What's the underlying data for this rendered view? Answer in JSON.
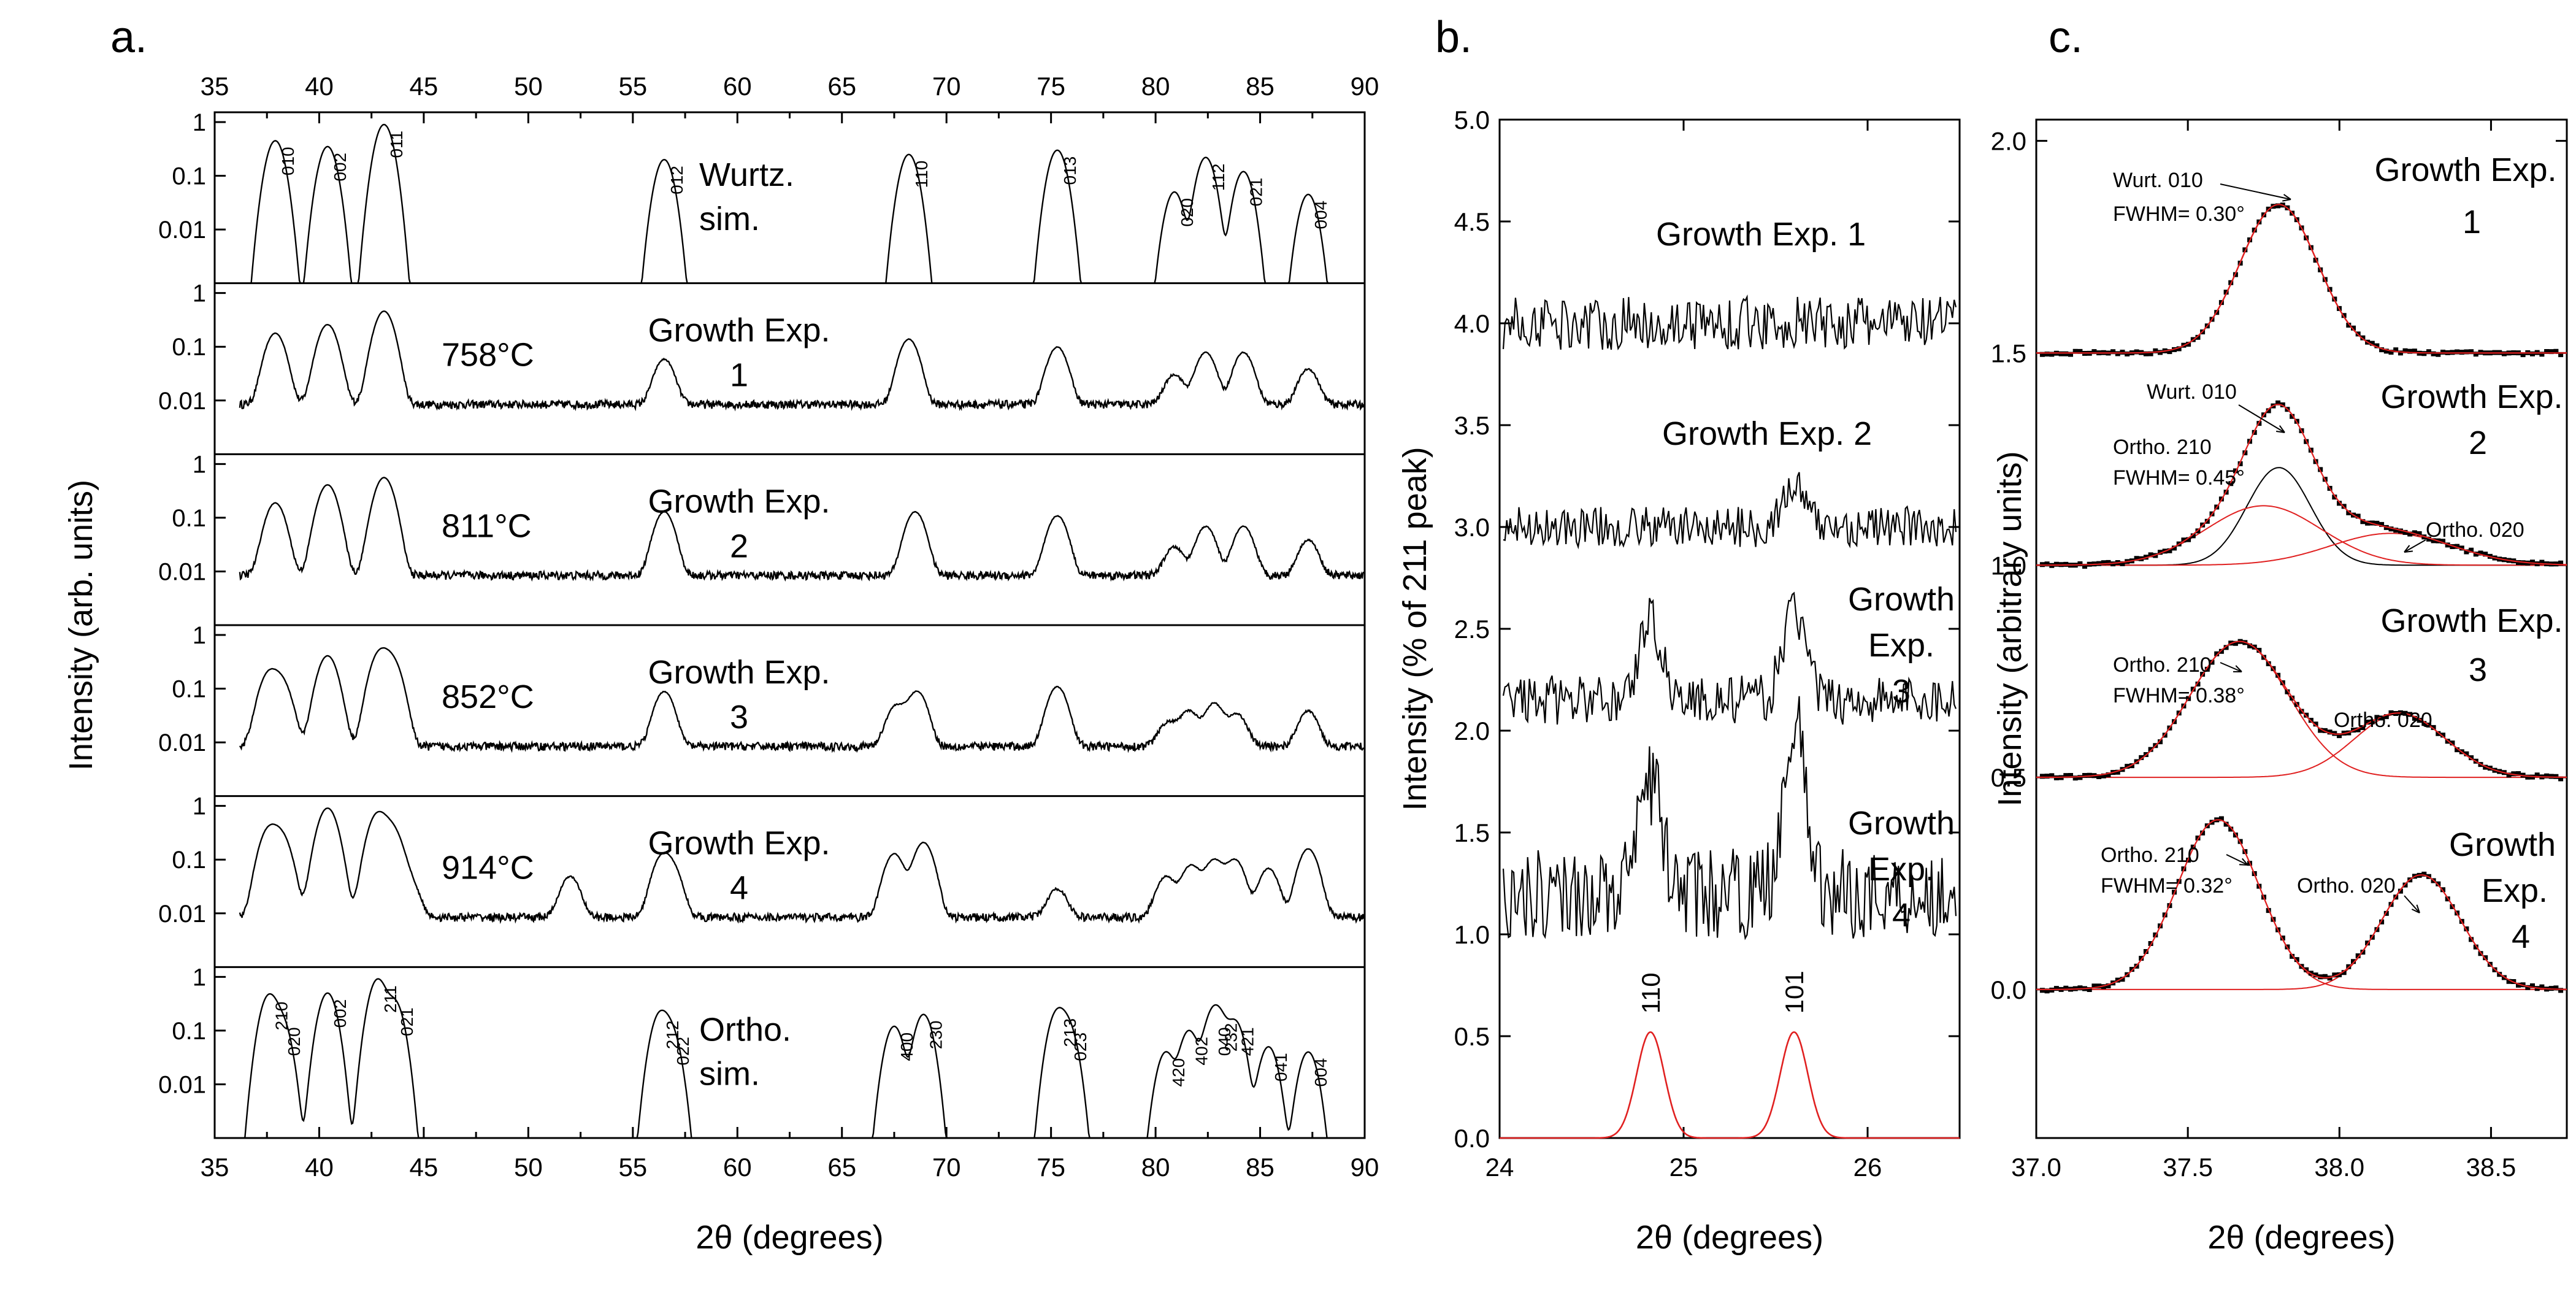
{
  "panels": {
    "a": {
      "letter": "a."
    },
    "b": {
      "letter": "b."
    },
    "c": {
      "letter": "c."
    }
  },
  "chart_data": [
    {
      "type": "line",
      "panel": "a",
      "xlabel": "2θ (degrees)",
      "ylabel": "Intensity (arb. units)",
      "xlim": [
        35,
        90
      ],
      "xticks": [
        "35",
        "40",
        "45",
        "50",
        "55",
        "60",
        "65",
        "70",
        "75",
        "80",
        "85",
        "90"
      ],
      "ylog": true,
      "ylim": [
        0.001,
        1
      ],
      "yticks": [
        "0.01",
        "0.1",
        "1"
      ],
      "subpanels": [
        {
          "label": "Wurtz. sim.",
          "label_lines": [
            "Wurtz.",
            "sim."
          ],
          "temp": "",
          "kind": "sim",
          "peaks": [
            {
              "x": 37.9,
              "h": 0.45,
              "hkl": "010"
            },
            {
              "x": 40.4,
              "h": 0.35,
              "hkl": "002"
            },
            {
              "x": 43.1,
              "h": 0.9,
              "hkl": "011"
            },
            {
              "x": 56.5,
              "h": 0.2,
              "hkl": "012"
            },
            {
              "x": 68.2,
              "h": 0.25,
              "hkl": "110"
            },
            {
              "x": 75.3,
              "h": 0.3,
              "hkl": "013"
            },
            {
              "x": 80.9,
              "h": 0.05,
              "hkl": "020"
            },
            {
              "x": 82.4,
              "h": 0.22,
              "hkl": "112"
            },
            {
              "x": 84.2,
              "h": 0.12,
              "hkl": "021"
            },
            {
              "x": 87.3,
              "h": 0.045,
              "hkl": "004"
            }
          ]
        },
        {
          "label": "Growth Exp. 1",
          "label_lines": [
            "Growth Exp.",
            "1"
          ],
          "temp": "758°C",
          "kind": "exp",
          "peaks": [
            {
              "x": 37.9,
              "h": 0.17
            },
            {
              "x": 40.4,
              "h": 0.25
            },
            {
              "x": 43.1,
              "h": 0.45
            },
            {
              "x": 56.5,
              "h": 0.05
            },
            {
              "x": 68.2,
              "h": 0.13
            },
            {
              "x": 75.3,
              "h": 0.09
            },
            {
              "x": 80.9,
              "h": 0.022
            },
            {
              "x": 82.4,
              "h": 0.07
            },
            {
              "x": 84.2,
              "h": 0.07
            },
            {
              "x": 87.3,
              "h": 0.03
            }
          ]
        },
        {
          "label": "Growth Exp. 2",
          "label_lines": [
            "Growth Exp.",
            "2"
          ],
          "temp": "811°C",
          "kind": "exp",
          "peaks": [
            {
              "x": 37.9,
              "h": 0.18
            },
            {
              "x": 40.4,
              "h": 0.4
            },
            {
              "x": 43.1,
              "h": 0.55
            },
            {
              "x": 56.5,
              "h": 0.12
            },
            {
              "x": 68.5,
              "h": 0.12
            },
            {
              "x": 75.3,
              "h": 0.1
            },
            {
              "x": 80.9,
              "h": 0.02
            },
            {
              "x": 82.4,
              "h": 0.06
            },
            {
              "x": 84.2,
              "h": 0.06
            },
            {
              "x": 87.3,
              "h": 0.03
            }
          ]
        },
        {
          "label": "Growth Exp. 3",
          "label_lines": [
            "Growth Exp.",
            "3"
          ],
          "temp": "852°C",
          "kind": "exp",
          "peaks": [
            {
              "x": 37.6,
              "h": 0.18
            },
            {
              "x": 38.2,
              "h": 0.12
            },
            {
              "x": 40.4,
              "h": 0.4
            },
            {
              "x": 42.9,
              "h": 0.45
            },
            {
              "x": 43.5,
              "h": 0.3
            },
            {
              "x": 56.5,
              "h": 0.08
            },
            {
              "x": 67.6,
              "h": 0.04
            },
            {
              "x": 68.6,
              "h": 0.08
            },
            {
              "x": 75.3,
              "h": 0.1
            },
            {
              "x": 80.6,
              "h": 0.015
            },
            {
              "x": 81.6,
              "h": 0.03
            },
            {
              "x": 82.8,
              "h": 0.045
            },
            {
              "x": 83.9,
              "h": 0.025
            },
            {
              "x": 87.3,
              "h": 0.03
            }
          ]
        },
        {
          "label": "Growth Exp. 4",
          "label_lines": [
            "Growth Exp.",
            "4"
          ],
          "temp": "914°C",
          "kind": "exp",
          "peaks": [
            {
              "x": 37.6,
              "h": 0.35
            },
            {
              "x": 38.2,
              "h": 0.25
            },
            {
              "x": 40.4,
              "h": 0.9
            },
            {
              "x": 42.8,
              "h": 0.7
            },
            {
              "x": 43.5,
              "h": 0.35
            },
            {
              "x": 44.3,
              "h": 0.03
            },
            {
              "x": 52.0,
              "h": 0.04
            },
            {
              "x": 56.4,
              "h": 0.1
            },
            {
              "x": 56.9,
              "h": 0.05
            },
            {
              "x": 67.5,
              "h": 0.12
            },
            {
              "x": 68.9,
              "h": 0.2
            },
            {
              "x": 75.3,
              "h": 0.02
            },
            {
              "x": 80.5,
              "h": 0.04
            },
            {
              "x": 81.7,
              "h": 0.07
            },
            {
              "x": 82.8,
              "h": 0.09
            },
            {
              "x": 83.8,
              "h": 0.09
            },
            {
              "x": 85.4,
              "h": 0.06
            },
            {
              "x": 87.3,
              "h": 0.15
            }
          ]
        },
        {
          "label": "Ortho. sim.",
          "label_lines": [
            "Ortho.",
            "sim."
          ],
          "temp": "",
          "kind": "sim",
          "peaks": [
            {
              "x": 37.6,
              "h": 0.45,
              "hkl": "210"
            },
            {
              "x": 38.2,
              "h": 0.15,
              "hkl": "020"
            },
            {
              "x": 40.4,
              "h": 0.5,
              "hkl": "002"
            },
            {
              "x": 42.8,
              "h": 0.9,
              "hkl": "211"
            },
            {
              "x": 43.6,
              "h": 0.35,
              "hkl": "021"
            },
            {
              "x": 56.3,
              "h": 0.2,
              "hkl": "212"
            },
            {
              "x": 56.8,
              "h": 0.1,
              "hkl": "022"
            },
            {
              "x": 67.5,
              "h": 0.12,
              "hkl": "400"
            },
            {
              "x": 68.9,
              "h": 0.2,
              "hkl": "230"
            },
            {
              "x": 75.3,
              "h": 0.22,
              "hkl": "213"
            },
            {
              "x": 75.8,
              "h": 0.12,
              "hkl": "023"
            },
            {
              "x": 80.5,
              "h": 0.04,
              "hkl": "420"
            },
            {
              "x": 81.6,
              "h": 0.1,
              "hkl": "402"
            },
            {
              "x": 82.7,
              "h": 0.15,
              "hkl": "040"
            },
            {
              "x": 83.0,
              "h": 0.18,
              "hkl": "232"
            },
            {
              "x": 83.8,
              "h": 0.15,
              "hkl": "421"
            },
            {
              "x": 85.4,
              "h": 0.05,
              "hkl": "041"
            },
            {
              "x": 87.3,
              "h": 0.04,
              "hkl": "004"
            }
          ]
        }
      ]
    },
    {
      "type": "line",
      "panel": "b",
      "xlabel": "2θ (degrees)",
      "ylabel": "Intensity (% of 211 peak)",
      "xlim": [
        24,
        26.5
      ],
      "xticks": [
        "24",
        "25",
        "26"
      ],
      "ylim": [
        0,
        5
      ],
      "yticks": [
        "0.0",
        "0.5",
        "1.0",
        "1.5",
        "2.0",
        "2.5",
        "3.0",
        "3.5",
        "4.0",
        "4.5",
        "5.0"
      ],
      "series": [
        {
          "name": "Growth Exp. 1",
          "label_lines": [
            "Growth Exp. 1"
          ],
          "baseline": 4.0,
          "noise": 0.13,
          "peaks": []
        },
        {
          "name": "Growth Exp. 2",
          "label_lines": [
            "Growth Exp. 2"
          ],
          "baseline": 3.0,
          "noise": 0.1,
          "peaks": [
            {
              "x": 25.6,
              "h": 0.2
            }
          ]
        },
        {
          "name": "Growth Exp. 3",
          "label_lines": [
            "Growth",
            "Exp.",
            "3"
          ],
          "baseline": 2.15,
          "noise": 0.12,
          "peaks": [
            {
              "x": 24.82,
              "h": 0.4
            },
            {
              "x": 25.6,
              "h": 0.45
            }
          ]
        },
        {
          "name": "Growth Exp. 4",
          "label_lines": [
            "Growth",
            "Exp.",
            "4"
          ],
          "baseline": 1.2,
          "noise": 0.22,
          "peaks": [
            {
              "x": 24.82,
              "h": 0.55
            },
            {
              "x": 25.6,
              "h": 0.85
            }
          ]
        }
      ],
      "reference": [
        {
          "x": 24.82,
          "h": 0.52,
          "hkl": "110"
        },
        {
          "x": 25.6,
          "h": 0.52,
          "hkl": "101"
        }
      ],
      "reference_color": "#e02020"
    },
    {
      "type": "line",
      "panel": "c",
      "xlabel": "2θ (degrees)",
      "ylabel": "Intensity (arbitrary units)",
      "xlim": [
        37.0,
        38.75
      ],
      "xticks": [
        "37.0",
        "37.5",
        "38.0",
        "38.5"
      ],
      "ylim": [
        -0.35,
        2.05
      ],
      "yticks": [
        "0.0",
        "0.5",
        "1.0",
        "1.5",
        "2.0"
      ],
      "fit_color": "#e02020",
      "series": [
        {
          "name": "Growth Exp. 1",
          "label_lines": [
            "Growth Exp.",
            "1"
          ],
          "offset": 1.5,
          "components": [
            {
              "x": 37.8,
              "sigma": 0.128,
              "h": 0.35,
              "label": "Wurt. 010",
              "fwhm": "FWHM= 0.30°"
            }
          ]
        },
        {
          "name": "Growth Exp. 2",
          "label_lines": [
            "Growth Exp.",
            "2"
          ],
          "offset": 1.0,
          "components": [
            {
              "x": 37.8,
              "sigma": 0.105,
              "h": 0.23,
              "label": "Wurt. 010",
              "fwhm": ""
            },
            {
              "x": 37.75,
              "sigma": 0.19,
              "h": 0.14,
              "label": "Ortho. 210",
              "fwhm": "FWHM= 0.45°"
            },
            {
              "x": 38.17,
              "sigma": 0.2,
              "h": 0.075,
              "label": "Ortho. 020",
              "fwhm": ""
            }
          ]
        },
        {
          "name": "Growth Exp. 3",
          "label_lines": [
            "Growth Exp.",
            "3"
          ],
          "offset": 0.5,
          "components": [
            {
              "x": 37.67,
              "sigma": 0.162,
              "h": 0.32,
              "label": "Ortho. 210",
              "fwhm": "FWHM= 0.38°"
            },
            {
              "x": 38.2,
              "sigma": 0.15,
              "h": 0.15,
              "label": "Ortho. 020",
              "fwhm": ""
            }
          ]
        },
        {
          "name": "Growth Exp. 4",
          "label_lines": [
            "Growth",
            "Exp.",
            "4"
          ],
          "offset": 0.0,
          "components": [
            {
              "x": 37.6,
              "sigma": 0.136,
              "h": 0.4,
              "label": "Ortho. 210",
              "fwhm": "FWHM= 0.32°"
            },
            {
              "x": 38.27,
              "sigma": 0.13,
              "h": 0.27,
              "label": "Ortho. 020",
              "fwhm": ""
            }
          ]
        }
      ]
    }
  ]
}
